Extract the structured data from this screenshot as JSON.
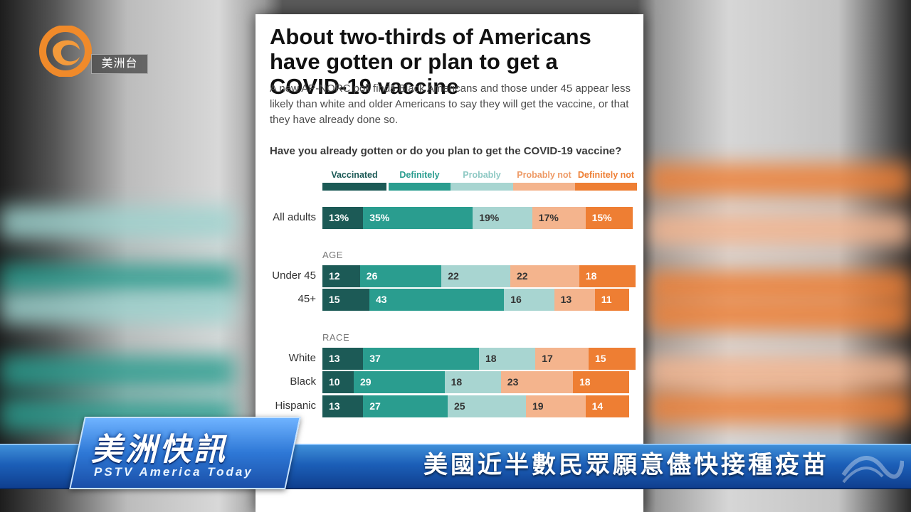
{
  "broadcast": {
    "station_name": "美洲台",
    "brand_cn": "美洲快訊",
    "brand_en": "PSTV America Today",
    "headline": "美國近半數民眾願意儘快接種疫苗"
  },
  "graphic": {
    "title": "About two-thirds of Americans have gotten or plan to get a COVID-19 vaccine",
    "subtitle": "A new AP-NORC poll finds Black Americans and those under 45 appear less likely than white and older Americans to say they will get the vaccine, or that they have already done so.",
    "question": "Have you already gotten or do you plan to get the COVID-19 vaccine?"
  },
  "chart_data": {
    "type": "bar",
    "orientation": "horizontal",
    "stacked": true,
    "series": [
      {
        "name": "Vaccinated",
        "color": "#1c5a56"
      },
      {
        "name": "Definitely",
        "color": "#2a9d8f"
      },
      {
        "name": "Probably",
        "color": "#a8d5d1"
      },
      {
        "name": "Probably not",
        "color": "#f4b48d"
      },
      {
        "name": "Definitely not",
        "color": "#ee7e33"
      }
    ],
    "label_colors": [
      "#ffffff",
      "#ffffff",
      "#333333",
      "#333333",
      "#ffffff"
    ],
    "legend_text_colors": [
      "#1c5a56",
      "#2a9d8f",
      "#8fc9c4",
      "#ee9a66",
      "#ee7e33"
    ],
    "groups": [
      {
        "label": "",
        "rows": [
          {
            "category": "All adults",
            "values": [
              13,
              35,
              19,
              17,
              15
            ],
            "labels": [
              "13%",
              "35%",
              "19%",
              "17%",
              "15%"
            ]
          }
        ]
      },
      {
        "label": "AGE",
        "rows": [
          {
            "category": "Under 45",
            "values": [
              12,
              26,
              22,
              22,
              18
            ],
            "labels": [
              "12",
              "26",
              "22",
              "22",
              "18"
            ]
          },
          {
            "category": "45+",
            "values": [
              15,
              43,
              16,
              13,
              11
            ],
            "labels": [
              "15",
              "43",
              "16",
              "13",
              "11"
            ]
          }
        ]
      },
      {
        "label": "RACE",
        "rows": [
          {
            "category": "White",
            "values": [
              13,
              37,
              18,
              17,
              15
            ],
            "labels": [
              "13",
              "37",
              "18",
              "17",
              "15"
            ]
          },
          {
            "category": "Black",
            "values": [
              10,
              29,
              18,
              23,
              18
            ],
            "labels": [
              "10",
              "29",
              "18",
              "23",
              "18"
            ]
          },
          {
            "category": "Hispanic",
            "values": [
              13,
              27,
              25,
              19,
              14
            ],
            "labels": [
              "13",
              "27",
              "25",
              "19",
              "14"
            ]
          }
        ]
      }
    ],
    "value_unit": "percent"
  }
}
